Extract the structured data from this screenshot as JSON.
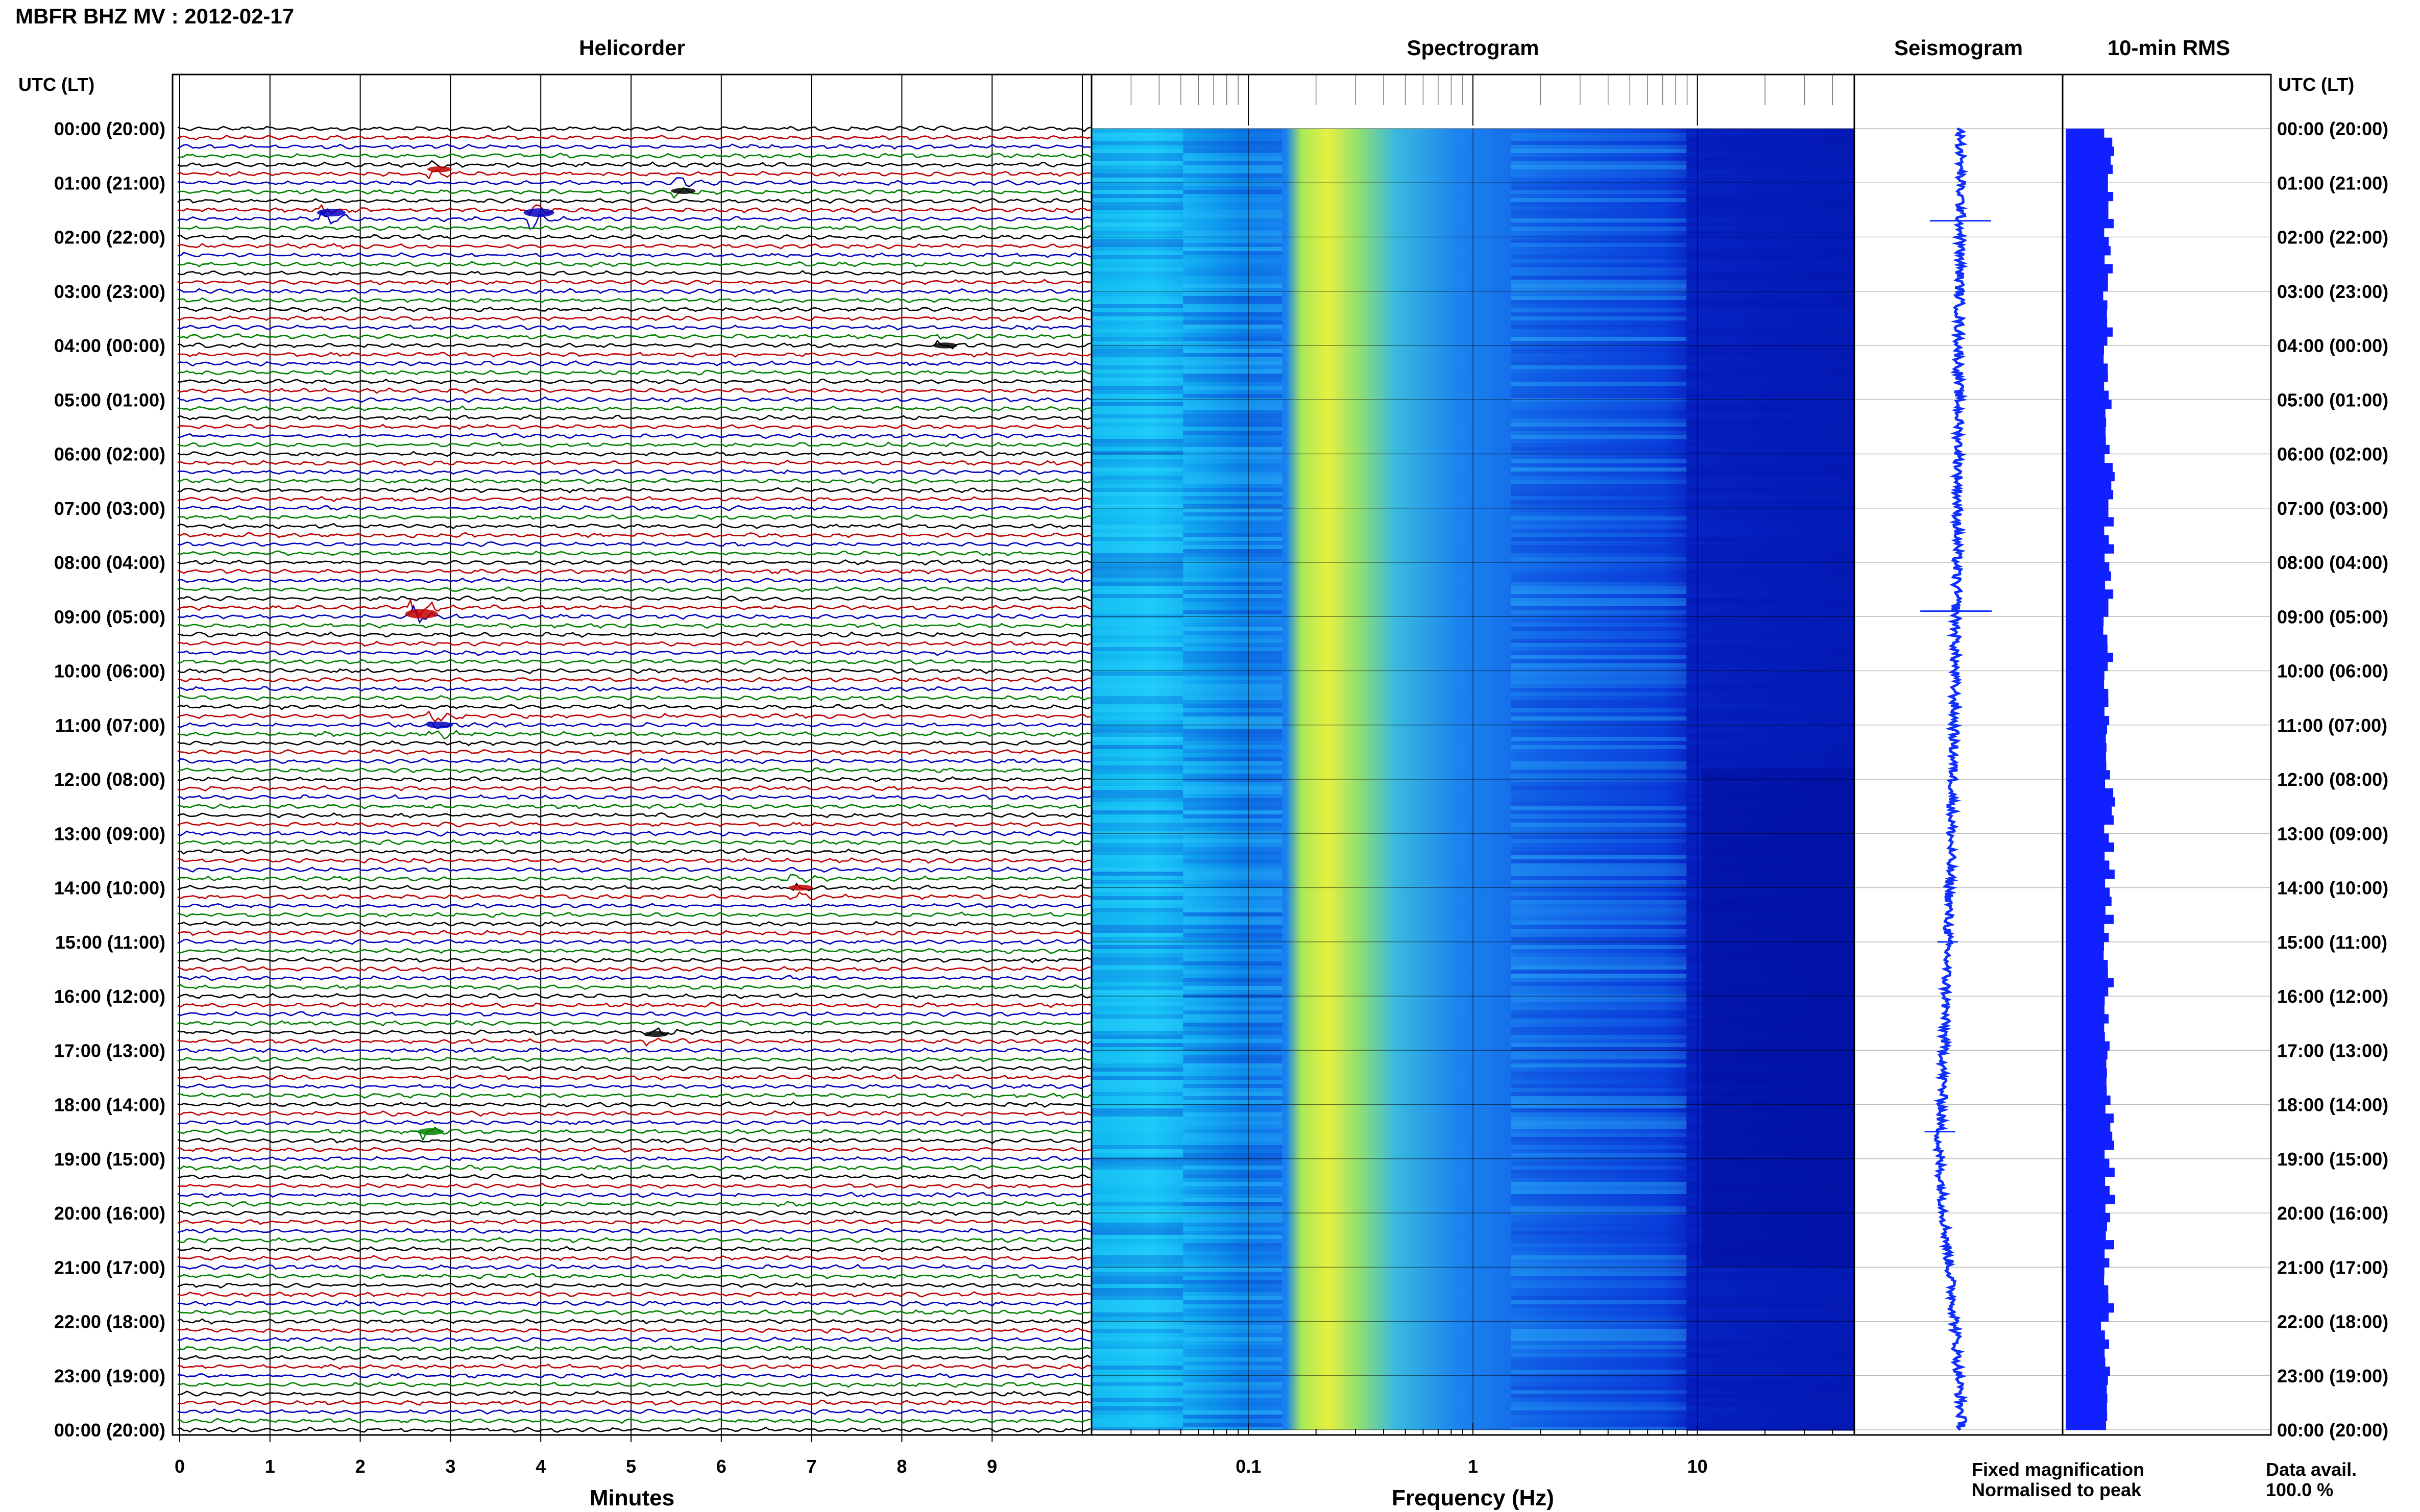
{
  "title": "MBFR BHZ MV : 2012-02-17",
  "panels": {
    "helicorder": "Helicorder",
    "spectrogram": "Spectrogram",
    "seismogram": "Seismogram",
    "rms": "10-min RMS"
  },
  "axis_header_left": "UTC (LT)",
  "axis_header_right": "UTC (LT)",
  "time_labels": [
    "00:00 (20:00)",
    "01:00 (21:00)",
    "02:00 (22:00)",
    "03:00 (23:00)",
    "04:00 (00:00)",
    "05:00 (01:00)",
    "06:00 (02:00)",
    "07:00 (03:00)",
    "08:00 (04:00)",
    "09:00 (05:00)",
    "10:00 (06:00)",
    "11:00 (07:00)",
    "12:00 (08:00)",
    "13:00 (09:00)",
    "14:00 (10:00)",
    "15:00 (11:00)",
    "16:00 (12:00)",
    "17:00 (13:00)",
    "18:00 (14:00)",
    "19:00 (15:00)",
    "20:00 (16:00)",
    "21:00 (17:00)",
    "22:00 (18:00)",
    "23:00 (19:00)",
    "00:00 (20:00)"
  ],
  "helicorder_xaxis": {
    "label": "Minutes",
    "ticks": [
      "0",
      "1",
      "2",
      "3",
      "4",
      "5",
      "6",
      "7",
      "8",
      "9"
    ]
  },
  "spectrogram_xaxis": {
    "label": "Frequency (Hz)",
    "ticks": [
      "0.1",
      "1",
      "10"
    ]
  },
  "legend": {
    "fixed": "Fixed magnification",
    "fixed_color": "#1010ff",
    "normalised": "Normalised to peak",
    "normalised_color": "#ff1010"
  },
  "availability": {
    "label": "Data avail.",
    "value": "100.0 %"
  },
  "colors": {
    "trace_cycle": [
      "#000000",
      "#c00000",
      "#0000c0",
      "#008000"
    ],
    "seismogram": "#1030ff",
    "rms_bar": "#1020ff"
  },
  "chart_data": {
    "type": "heatmap",
    "helicorder": {
      "type": "line",
      "x_unit": "minutes",
      "xlim": [
        0,
        10
      ],
      "line_minutes": 10,
      "lines_per_hour": 6,
      "hours": 24,
      "events": [
        {
          "hour": 0.75,
          "minute": 2.8,
          "amp": 3,
          "color": "red"
        },
        {
          "hour": 1.15,
          "minute": 5.5,
          "amp": 3,
          "color": "black"
        },
        {
          "hour": 1.55,
          "minute": 1.6,
          "amp": 5,
          "color": "blue"
        },
        {
          "hour": 1.55,
          "minute": 3.9,
          "amp": 6,
          "color": "blue"
        },
        {
          "hour": 4.0,
          "minute": 8.4,
          "amp": 3,
          "color": "black"
        },
        {
          "hour": 8.95,
          "minute": 2.6,
          "amp": 7,
          "color": "red"
        },
        {
          "hour": 11.0,
          "minute": 2.8,
          "amp": 4,
          "color": "blue"
        },
        {
          "hour": 14.0,
          "minute": 6.8,
          "amp": 3,
          "color": "red"
        },
        {
          "hour": 16.7,
          "minute": 5.2,
          "amp": 3,
          "color": "black"
        },
        {
          "hour": 18.5,
          "minute": 2.7,
          "amp": 4,
          "color": "green"
        }
      ]
    },
    "spectrogram": {
      "type": "heatmap",
      "xscale": "log",
      "xlim": [
        0.02,
        50
      ],
      "ticks": [
        0.1,
        1,
        10
      ],
      "y_unit": "hours UTC",
      "ylim": [
        0,
        24
      ],
      "colormap": "jet",
      "dominant_band_hz": [
        0.2,
        0.35
      ]
    },
    "seismogram": {
      "type": "line",
      "orientation": "vertical",
      "hours": [
        0,
        2,
        4,
        6,
        8,
        10,
        12,
        14,
        16,
        18,
        18.8,
        20,
        22,
        24
      ],
      "relative_offset": [
        0,
        0,
        -0.02,
        -0.02,
        -0.04,
        -0.06,
        -0.08,
        -0.12,
        -0.16,
        -0.2,
        -0.24,
        -0.18,
        -0.06,
        0.02
      ]
    },
    "rms": {
      "type": "bar",
      "orientation": "horizontal",
      "interval_minutes": 10,
      "relative_level": [
        0.82,
        0.95,
        0.95,
        0.95,
        0.95,
        0.82,
        0.88,
        0.95,
        0.82,
        0.88,
        0.95,
        0.82,
        0.88,
        0.88,
        0.82,
        0.95,
        0.82,
        0.88,
        0.75,
        0.8,
        0.85,
        0.82,
        1.0,
        0.85,
        0.75,
        0.8,
        0.85,
        0.82,
        0.8,
        0.86,
        0.88,
        0.82,
        0.8,
        0.85,
        0.82,
        0.86
      ]
    }
  }
}
